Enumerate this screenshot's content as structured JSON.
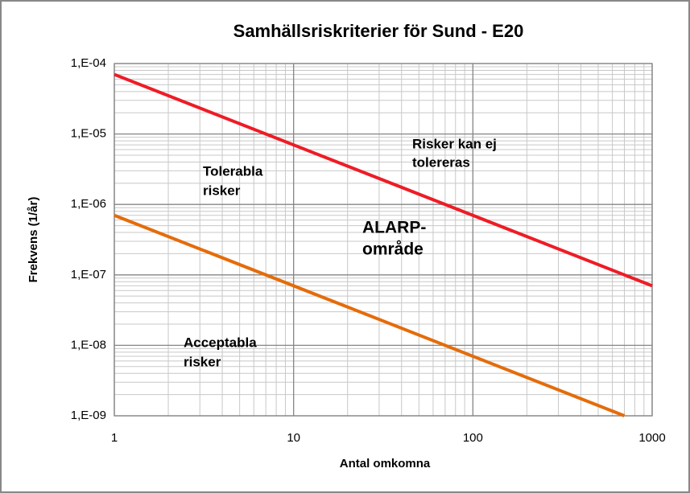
{
  "chart_data": {
    "type": "line",
    "title": "Samhällsriskriterier för Sund - E20",
    "x_label": "Antal omkomna",
    "y_label": "Frekvens (1/år)",
    "log_x": true,
    "log_y": true,
    "grid": true,
    "minor_grid": true,
    "xlim": [
      1,
      1000
    ],
    "xticks": [
      1,
      10,
      100,
      1000
    ],
    "ylim": [
      1e-09,
      0.0001
    ],
    "yticks": [
      {
        "value": 1e-09,
        "label": "1,E-09"
      },
      {
        "value": 1e-08,
        "label": "1,E-08"
      },
      {
        "value": 1e-07,
        "label": "1,E-07"
      },
      {
        "value": 1e-06,
        "label": "1,E-06"
      },
      {
        "value": 1e-05,
        "label": "1,E-05"
      },
      {
        "value": 0.0001,
        "label": "1,E-04"
      }
    ],
    "series": [
      {
        "color": "#ee1c25",
        "x": [
          1,
          1000
        ],
        "values": [
          7e-05,
          7e-08
        ]
      },
      {
        "color": "#e46c0a",
        "x": [
          1,
          700
        ],
        "values": [
          7e-07,
          1e-09
        ]
      }
    ],
    "annotations": [
      [
        "Risker kan ej",
        "tolereras"
      ],
      [
        "Tolerabla",
        "risker"
      ],
      [
        "ALARP-",
        "område"
      ],
      [
        "Acceptabla",
        "risker"
      ]
    ]
  }
}
